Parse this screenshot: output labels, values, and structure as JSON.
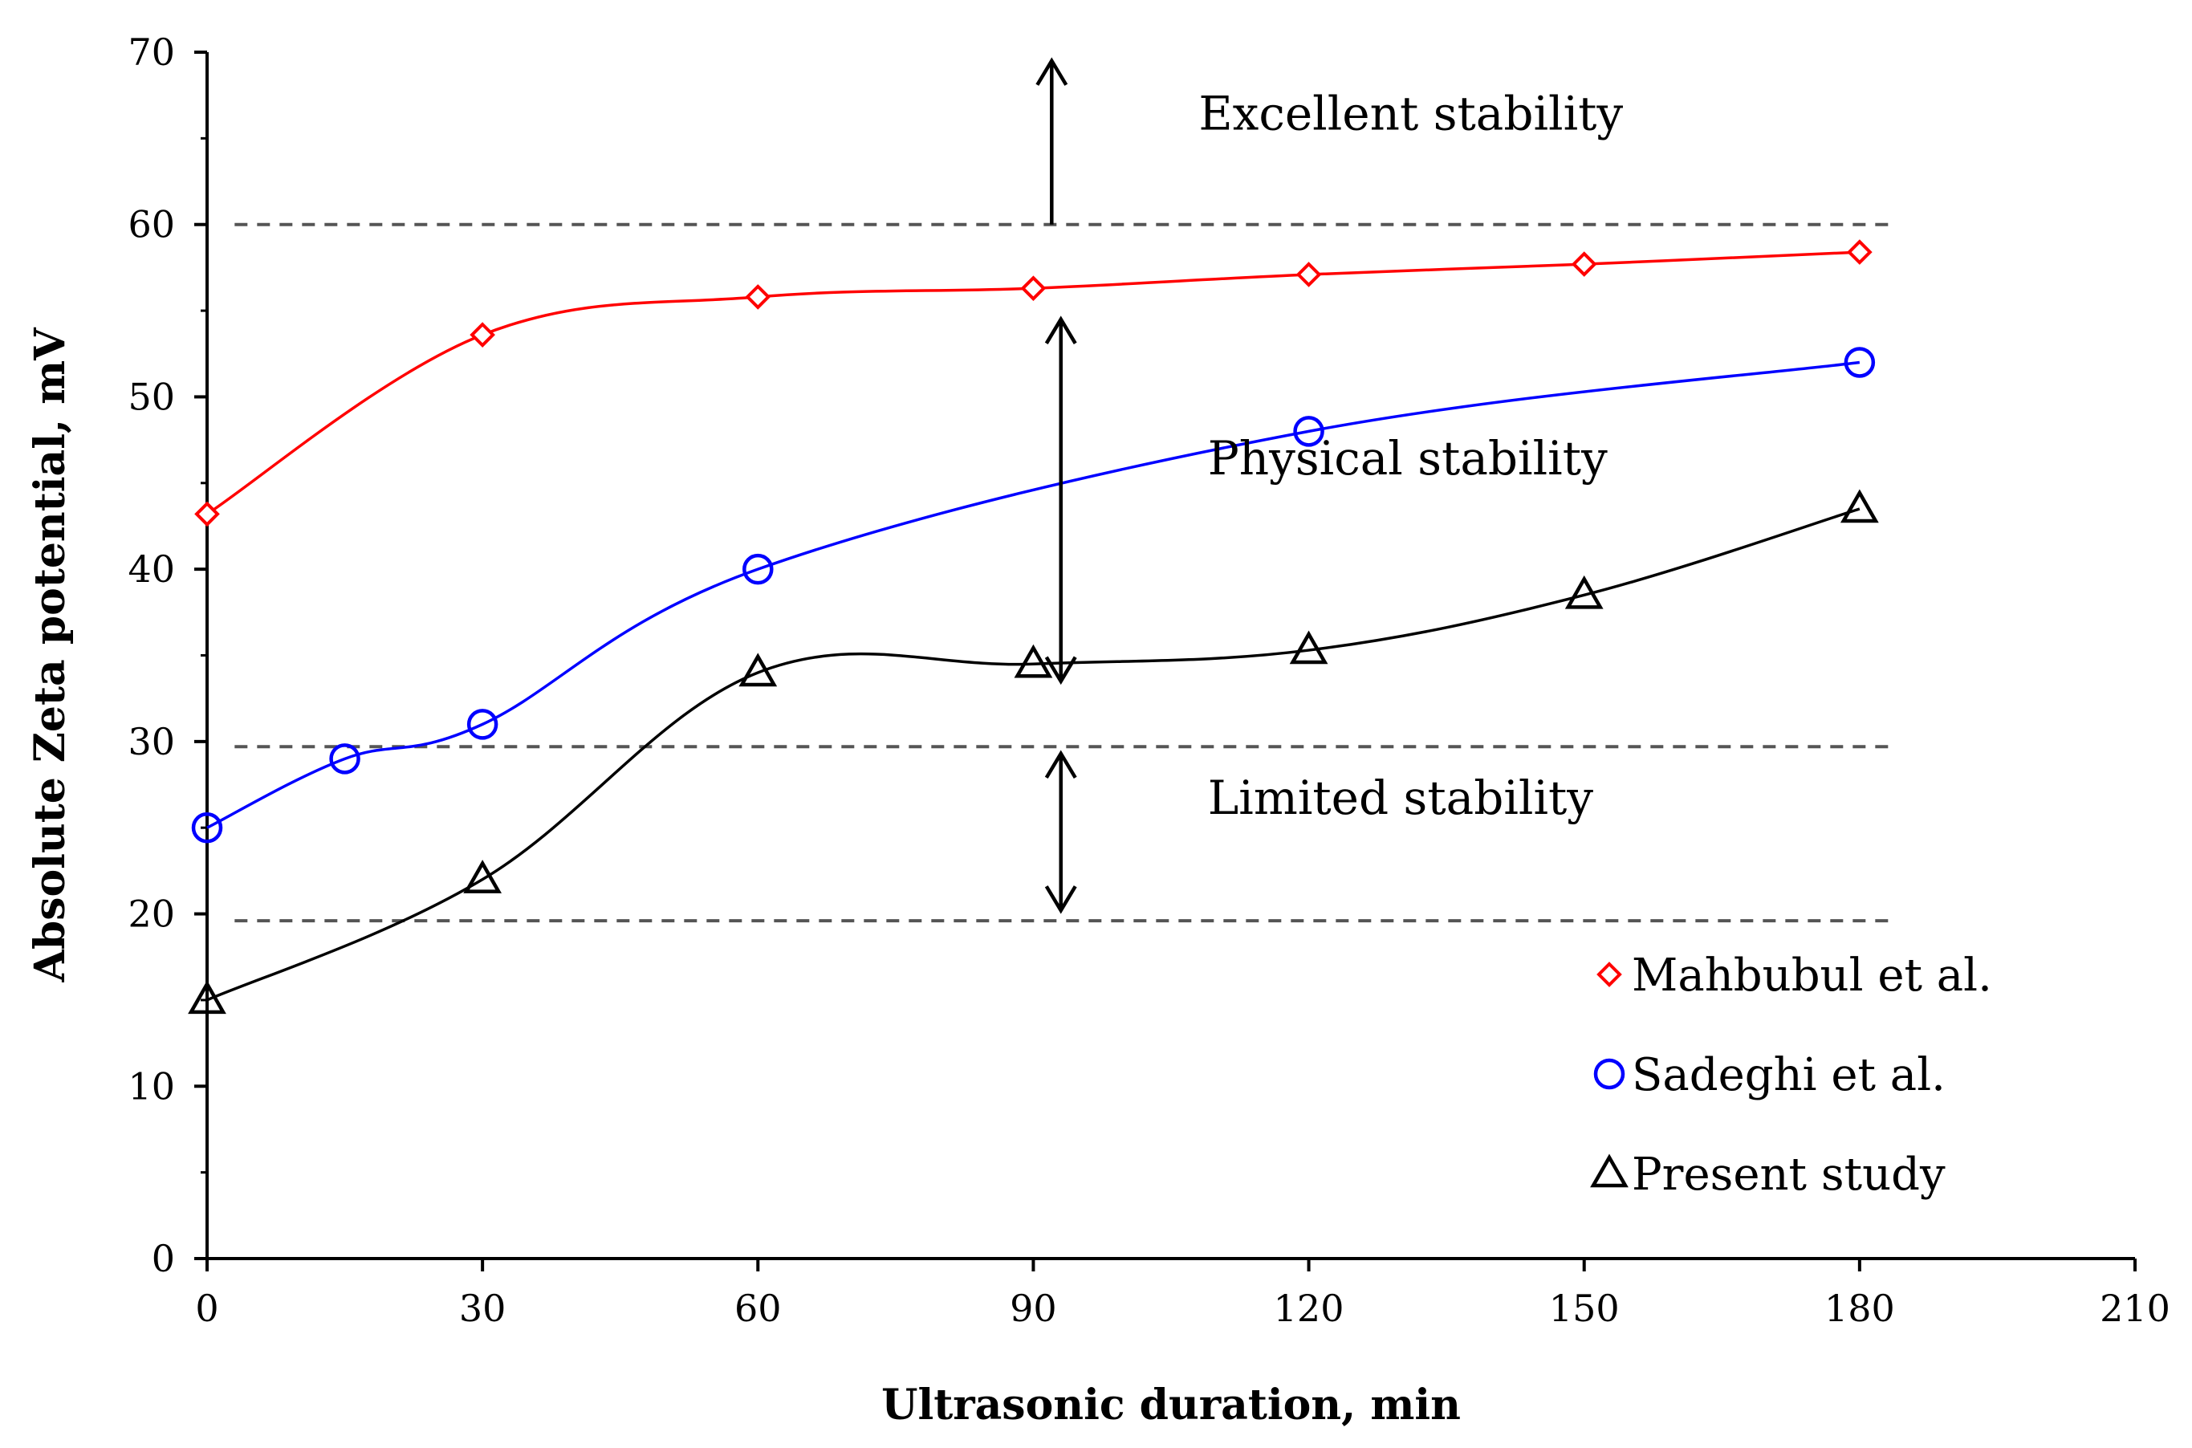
{
  "chart_data": {
    "type": "scatter",
    "xlabel": "Ultrasonic duration, min",
    "ylabel": "Absolute Zeta potential, mV",
    "xlim": [
      0,
      210
    ],
    "ylim": [
      0,
      70
    ],
    "x_ticks": [
      0,
      30,
      60,
      90,
      120,
      150,
      180,
      210
    ],
    "y_ticks": [
      0,
      10,
      20,
      30,
      40,
      50,
      60,
      70
    ],
    "grid": false,
    "legend_position": "bottom-right",
    "series": [
      {
        "name": "Mahbubul et al.",
        "marker": "diamond",
        "color": "#ff0000",
        "x": [
          0,
          30,
          60,
          90,
          120,
          150,
          180
        ],
        "y": [
          43.2,
          53.6,
          55.8,
          56.3,
          57.1,
          57.7,
          58.4
        ]
      },
      {
        "name": "Sadeghi et al.",
        "marker": "circle",
        "color": "#0000ff",
        "x": [
          0,
          15,
          30,
          60,
          120,
          180
        ],
        "y": [
          25,
          29,
          31,
          40,
          48,
          52
        ]
      },
      {
        "name": "Present study",
        "marker": "triangle",
        "color": "#000000",
        "x": [
          0,
          30,
          60,
          90,
          120,
          150,
          180
        ],
        "y": [
          15,
          22,
          34,
          34.5,
          35.3,
          38.5,
          43.5
        ]
      }
    ],
    "reference_lines": [
      {
        "y": 60,
        "style": "dashed"
      },
      {
        "y": 29.7,
        "style": "dashed"
      },
      {
        "y": 19.6,
        "style": "dashed"
      }
    ],
    "annotations": [
      {
        "text": "Excellent stability",
        "x": 108,
        "y": 65.5
      },
      {
        "text": "Physical stability",
        "x": 109,
        "y": 45.5
      },
      {
        "text": "Limited stability",
        "x": 109,
        "y": 25.8
      }
    ],
    "arrows": [
      {
        "kind": "up",
        "x": 92,
        "y_from": 60,
        "y_to": 69.5
      },
      {
        "kind": "double",
        "x": 93,
        "y_from": 33.5,
        "y_to": 54.5
      },
      {
        "kind": "double",
        "x": 93,
        "y_from": 20.2,
        "y_to": 29.3
      }
    ]
  }
}
